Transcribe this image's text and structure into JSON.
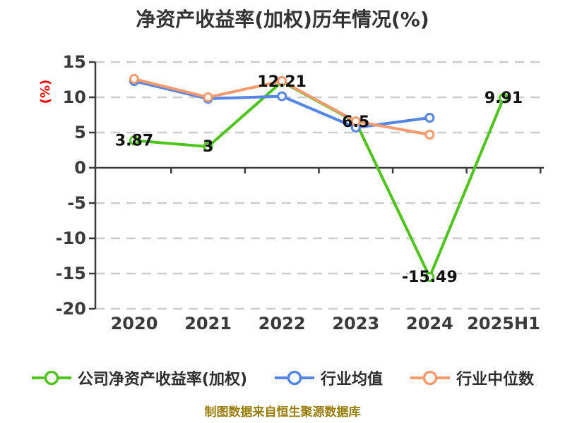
{
  "footer": {
    "note": "制图数据来自恒生聚源数据库"
  },
  "colors": {
    "background": "#ffffff",
    "title_text": "#333333",
    "tick_text": "#3a3a3a",
    "axis_line": "#3c3c3c",
    "gridline": "#cccccc",
    "unit_label": "#ee0000",
    "data_label": "#111111",
    "legend_text": "#2f2f2f",
    "footer_text": "#9a7d0a",
    "marker_fill": "#ffffff"
  },
  "chart_data": {
    "type": "line",
    "title": "净资产收益率(加权)历年情况(%)",
    "ylabel": "(%)",
    "xlabel": "",
    "categories": [
      "2020",
      "2021",
      "2022",
      "2023",
      "2024",
      "2025H1"
    ],
    "y_ticks": [
      15,
      10,
      5,
      0,
      -5,
      -10,
      -15,
      -20
    ],
    "ylim": [
      -20,
      15
    ],
    "grid": "horizontal dashed gridlines at every tick except 0; solid axis line at 0 with downward segment ticks",
    "legend_position": "bottom",
    "series": [
      {
        "name": "公司净资产收益率(加权)",
        "color": "#4fc41f",
        "values": [
          3.87,
          3,
          12.21,
          6.5,
          -15.49,
          9.91
        ],
        "point_labels": [
          "3.87",
          "3",
          "12.21",
          "6.5",
          "-15.49",
          "9.91"
        ]
      },
      {
        "name": "行业均值",
        "color": "#5585e5",
        "values": [
          12.3,
          9.8,
          10.15,
          5.7,
          7.1,
          null
        ],
        "point_labels": []
      },
      {
        "name": "行业中位数",
        "color": "#f59a6e",
        "values": [
          12.6,
          10.0,
          12.3,
          6.6,
          4.7,
          null
        ],
        "point_labels": []
      }
    ]
  }
}
